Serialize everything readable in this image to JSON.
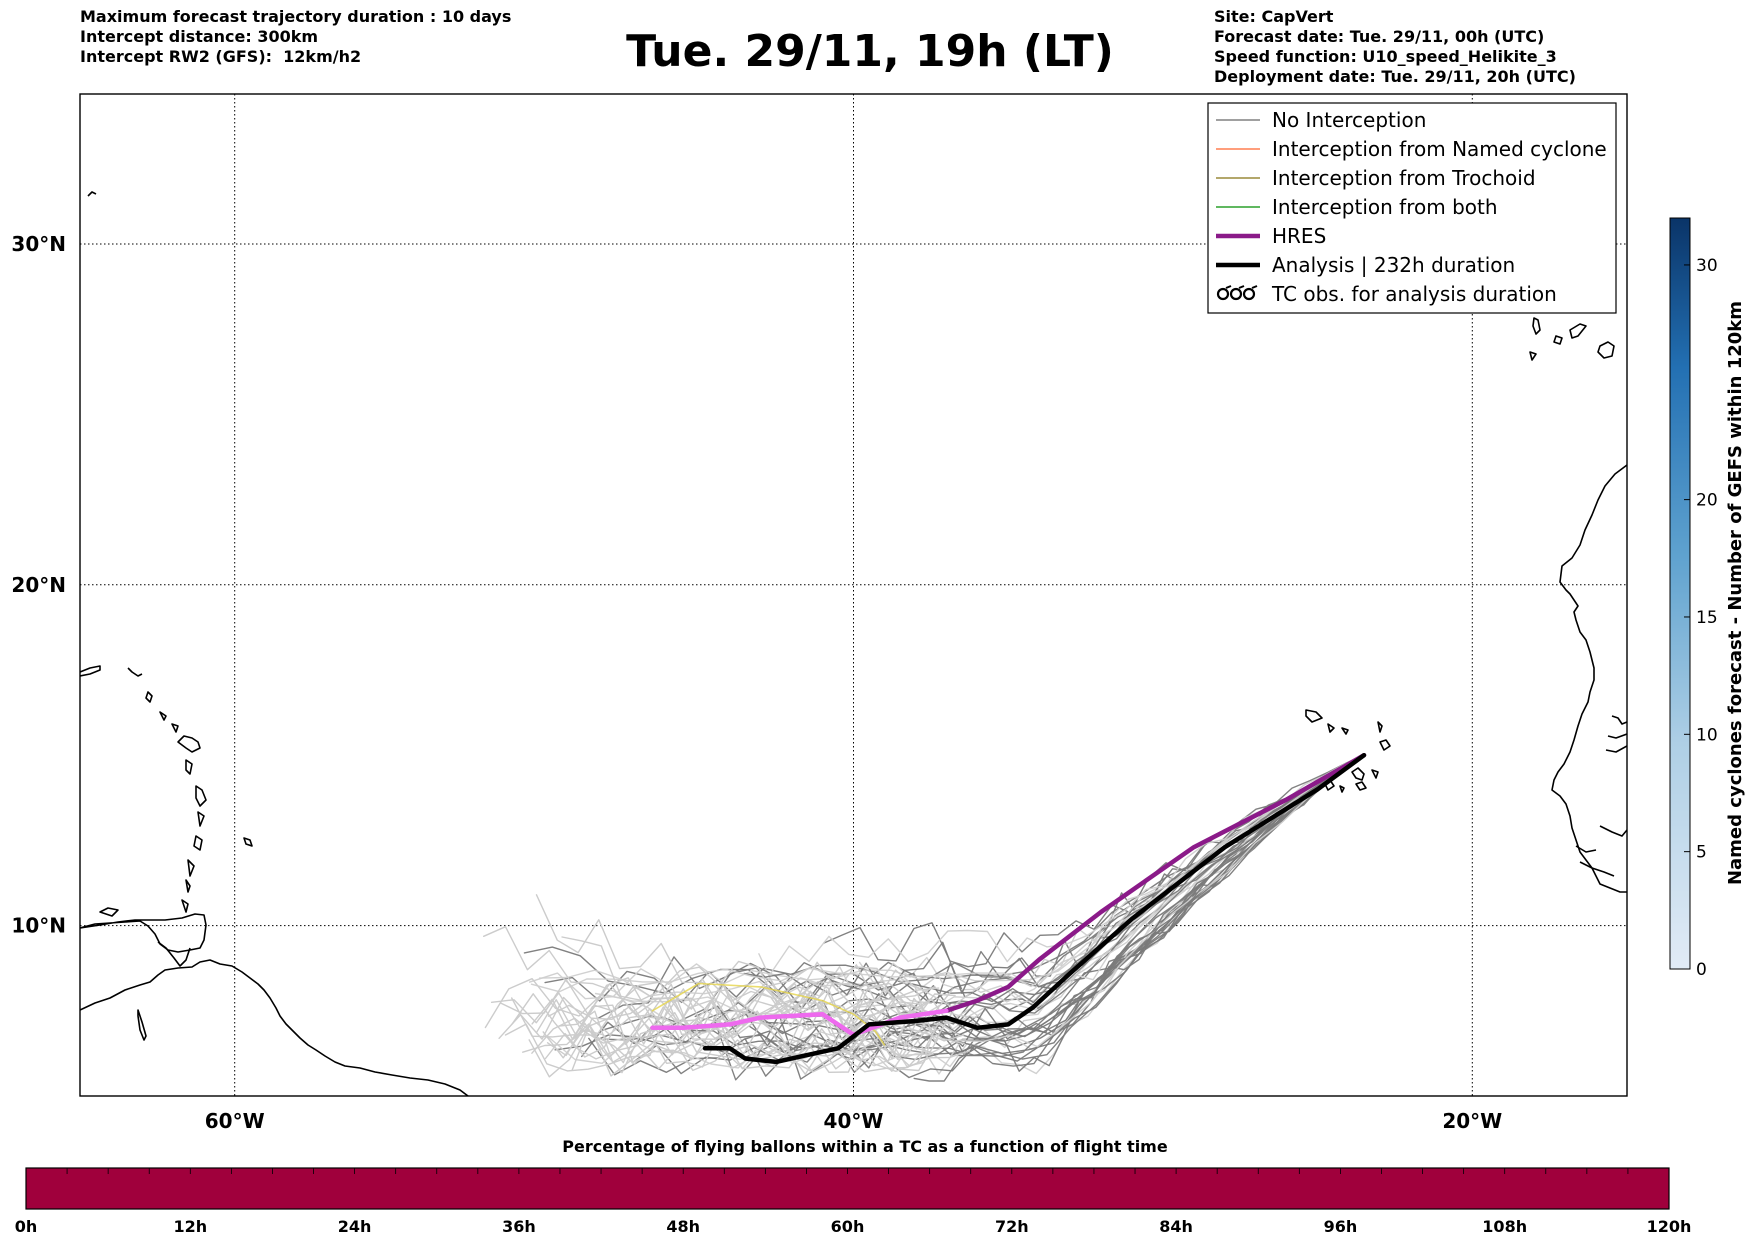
{
  "header": {
    "left_lines": [
      "Maximum forecast trajectory duration : 10 days",
      "Intercept distance: 300km",
      "Intercept RW2 (GFS):  12km/h2"
    ],
    "title": "Tue. 29/11, 19h (LT)",
    "right_lines": [
      "Site: CapVert",
      "Forecast date: Tue. 29/11, 00h (UTC)",
      "Speed function: U10_speed_Helikite_3",
      "Deployment date: Tue. 29/11, 20h (UTC)"
    ]
  },
  "map": {
    "lon_range": [
      -65,
      -15
    ],
    "lat_range": [
      5,
      34.4
    ],
    "lon_ticks": [
      {
        "lon": -60,
        "label": "60°W"
      },
      {
        "lon": -40,
        "label": "40°W"
      },
      {
        "lon": -20,
        "label": "20°W"
      }
    ],
    "lat_ticks": [
      {
        "lat": 10,
        "label": "10°N"
      },
      {
        "lat": 20,
        "label": "20°N"
      },
      {
        "lat": 30,
        "label": "30°N"
      }
    ],
    "grid": true,
    "release_site": {
      "lon": -23.5,
      "lat": 15.0
    }
  },
  "legend": {
    "placement": "top-right",
    "items": [
      {
        "label": "No Interception",
        "color": "#808080",
        "style": "thin-line"
      },
      {
        "label": "Interception from Named cyclone",
        "color": "#ff7f50",
        "style": "thin-line"
      },
      {
        "label": "Interception from Trochoid",
        "color": "#9a8a3a",
        "style": "thin-line"
      },
      {
        "label": "Interception from both",
        "color": "#2ca02c",
        "style": "thin-line"
      },
      {
        "label": "HRES",
        "color": "#8b1a89",
        "style": "thick-line"
      },
      {
        "label": "Analysis | 232h duration",
        "color": "#000000",
        "style": "thick-line"
      },
      {
        "label": "TC obs. for analysis duration",
        "color": "#000000",
        "style": "cyclone-symbols"
      }
    ]
  },
  "colorbar_right": {
    "label": "Named cyclones forecast - Number of GEFS within 120km",
    "ticks": [
      0,
      5,
      10,
      15,
      20,
      30
    ],
    "range": [
      0,
      32
    ],
    "colormap": "Blues"
  },
  "colorbar_bottom": {
    "title": "Percentage of flying ballons within a TC as a function of flight time",
    "tick_labels": [
      "0h",
      "12h",
      "24h",
      "36h",
      "48h",
      "60h",
      "72h",
      "84h",
      "96h",
      "108h",
      "120h"
    ],
    "fill_color": "#a0003c"
  },
  "trajectories": {
    "hres": [
      [
        -23.5,
        15.0
      ],
      [
        -26,
        13.7
      ],
      [
        -29,
        12.3
      ],
      [
        -32,
        10.4
      ],
      [
        -34,
        9.0
      ],
      [
        -35,
        8.2
      ],
      [
        -36,
        7.8
      ],
      [
        -37,
        7.5
      ],
      [
        -38.5,
        7.3
      ],
      [
        -40,
        6.8
      ],
      [
        -41,
        7.4
      ],
      [
        -43,
        7.3
      ],
      [
        -44,
        7.1
      ],
      [
        -45.5,
        7.0
      ],
      [
        -46.5,
        7.0
      ]
    ],
    "hres_faded_from": [
      -37,
      7.5
    ],
    "analysis": [
      [
        -23.5,
        15.0
      ],
      [
        -25,
        14.0
      ],
      [
        -28,
        12.3
      ],
      [
        -31,
        10.2
      ],
      [
        -33,
        8.6
      ],
      [
        -34.2,
        7.6
      ],
      [
        -35,
        7.1
      ],
      [
        -36,
        7.0
      ],
      [
        -37,
        7.3
      ],
      [
        -38,
        7.2
      ],
      [
        -39.5,
        7.1
      ],
      [
        -40.5,
        6.4
      ],
      [
        -41.5,
        6.2
      ],
      [
        -42.5,
        6.0
      ],
      [
        -43.5,
        6.1
      ],
      [
        -44,
        6.4
      ],
      [
        -44.8,
        6.4
      ]
    ],
    "trochoid": [
      [
        -46.5,
        7.5
      ],
      [
        -45,
        8.3
      ],
      [
        -43,
        8.2
      ],
      [
        -41,
        7.8
      ],
      [
        -40,
        7.4
      ],
      [
        -39.3,
        6.9
      ],
      [
        -39,
        6.5
      ]
    ]
  }
}
